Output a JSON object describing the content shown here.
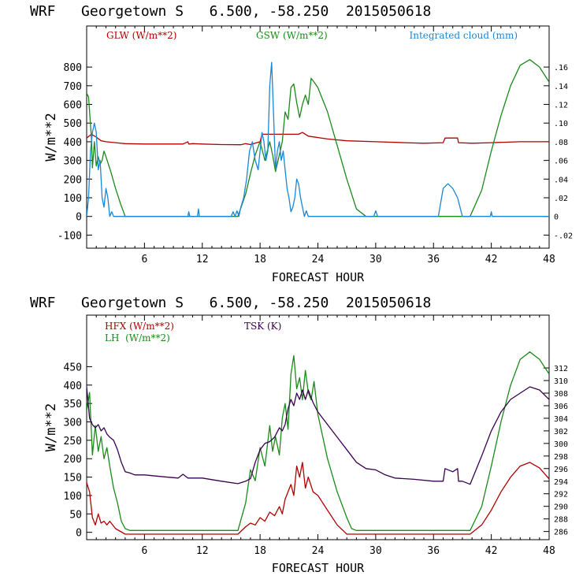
{
  "colors": {
    "red": "#b00000",
    "green": "#1a8a1a",
    "blue": "#1a86d8",
    "purple": "#3a0050",
    "axis": "#000000"
  },
  "chart_data": [
    {
      "type": "line",
      "title": "WRF   Georgetown S   6.500, -58.250  2015050618",
      "xlabel": "FORECAST HOUR",
      "ylabel": "W/m**2",
      "xlim": [
        0,
        48
      ],
      "ylim": [
        -170,
        1020
      ],
      "xticks": [
        "6",
        "12",
        "18",
        "24",
        "30",
        "36",
        "42",
        "48"
      ],
      "xtick_values": [
        6,
        12,
        18,
        24,
        30,
        36,
        42,
        48
      ],
      "yticks": [
        "-100",
        "0",
        "100",
        "200",
        "300",
        "400",
        "500",
        "600",
        "700",
        "800"
      ],
      "ytick_values": [
        -100,
        0,
        100,
        200,
        300,
        400,
        500,
        600,
        700,
        800
      ],
      "y2lim": [
        -0.034,
        0.204
      ],
      "y2ticks": [
        "-.02",
        "0",
        ".02",
        ".04",
        ".06",
        ".08",
        ".10",
        ".12",
        ".14",
        ".16"
      ],
      "y2tick_values": [
        -0.02,
        0,
        0.02,
        0.04,
        0.06,
        0.08,
        0.1,
        0.12,
        0.14,
        0.16
      ],
      "legend": [
        "GLW (W/m**2)",
        "GSW (W/m**2)",
        "Integrated cloud (mm)"
      ],
      "series": [
        {
          "name": "GLW (W/m**2)",
          "color": "red",
          "axis": "left",
          "x": [
            0,
            0.5,
            1,
            1.5,
            2,
            3,
            4,
            6,
            8,
            10,
            10.5,
            10.6,
            11,
            12,
            14,
            16,
            16.5,
            17,
            18,
            18.2,
            19,
            20,
            21,
            22,
            22.4,
            23,
            25,
            27,
            30,
            33,
            35,
            37,
            37.2,
            38.5,
            38.6,
            40,
            42,
            45,
            48
          ],
          "y": [
            420,
            440,
            425,
            405,
            400,
            395,
            390,
            388,
            388,
            388,
            400,
            388,
            390,
            388,
            385,
            384,
            390,
            385,
            400,
            440,
            440,
            440,
            440,
            440,
            450,
            430,
            415,
            405,
            400,
            395,
            392,
            395,
            420,
            420,
            395,
            392,
            395,
            400,
            400
          ]
        },
        {
          "name": "GSW (W/m**2)",
          "color": "green",
          "axis": "left",
          "x": [
            0,
            0.2,
            0.5,
            0.6,
            0.8,
            1,
            1.2,
            1.4,
            1.6,
            1.8,
            2,
            2.5,
            3,
            3.5,
            4,
            4.5,
            15.7,
            16.5,
            17,
            17.5,
            18,
            18.5,
            19,
            19.3,
            19.6,
            20,
            20.3,
            20.6,
            20.9,
            21.2,
            21.5,
            21.8,
            22.1,
            22.4,
            22.7,
            23,
            23.3,
            23.6,
            24,
            25,
            26,
            27,
            28,
            29,
            39.8,
            41,
            42,
            43,
            44,
            45,
            46,
            47,
            48
          ],
          "y": [
            660,
            640,
            420,
            260,
            400,
            270,
            320,
            280,
            300,
            350,
            320,
            240,
            150,
            70,
            0,
            0,
            0,
            120,
            230,
            330,
            400,
            300,
            400,
            330,
            240,
            330,
            400,
            560,
            520,
            690,
            710,
            610,
            530,
            600,
            650,
            600,
            740,
            720,
            690,
            560,
            380,
            200,
            40,
            0,
            0,
            140,
            350,
            540,
            700,
            810,
            840,
            800,
            720
          ]
        },
        {
          "name": "Integrated cloud (mm)",
          "color": "blue",
          "axis": "right",
          "x": [
            0,
            0.2,
            0.4,
            0.6,
            0.8,
            1.0,
            1.2,
            1.4,
            1.6,
            1.8,
            2.0,
            2.2,
            2.4,
            2.6,
            2.8,
            10.5,
            10.6,
            10.7,
            11.5,
            11.6,
            11.7,
            15.0,
            15.2,
            15.4,
            15.6,
            15.8,
            16.0,
            16.3,
            16.6,
            16.9,
            17.2,
            17.5,
            17.8,
            18.0,
            18.2,
            18.4,
            18.6,
            18.8,
            19.0,
            19.2,
            19.4,
            19.6,
            19.8,
            20.0,
            20.2,
            20.4,
            20.6,
            20.8,
            21.0,
            21.2,
            21.4,
            21.6,
            21.8,
            22.0,
            22.2,
            22.4,
            22.6,
            22.8,
            23.0,
            23.2,
            29.8,
            30.0,
            30.2,
            36.5,
            37.0,
            37.5,
            38.0,
            38.5,
            39.0,
            41.9,
            42.0,
            42.1,
            48
          ],
          "y": [
            0,
            0.02,
            0.07,
            0.09,
            0.1,
            0.09,
            0.05,
            0.06,
            0.02,
            0.01,
            0.03,
            0.02,
            0,
            0.005,
            0,
            0,
            0.005,
            0,
            0,
            0.008,
            0,
            0,
            0.005,
            0,
            0.006,
            0,
            0.01,
            0.02,
            0.04,
            0.07,
            0.08,
            0.06,
            0.05,
            0.07,
            0.09,
            0.08,
            0.06,
            0.07,
            0.14,
            0.165,
            0.11,
            0.05,
            0.07,
            0.08,
            0.06,
            0.07,
            0.05,
            0.03,
            0.02,
            0.005,
            0.01,
            0.02,
            0.04,
            0.035,
            0.02,
            0.01,
            0,
            0.006,
            0,
            0,
            0,
            0.006,
            0,
            0,
            0.03,
            0.035,
            0.03,
            0.02,
            0,
            0,
            0.005,
            0,
            0
          ]
        }
      ]
    },
    {
      "type": "line",
      "title": "WRF   Georgetown S   6.500, -58.250  2015050618",
      "xlabel": "FORECAST HOUR",
      "ylabel": "W/m**2",
      "xlim": [
        0,
        48
      ],
      "ylim": [
        -20,
        590
      ],
      "xticks": [
        "6",
        "12",
        "18",
        "24",
        "30",
        "36",
        "42",
        "48"
      ],
      "xtick_values": [
        6,
        12,
        18,
        24,
        30,
        36,
        42,
        48
      ],
      "yticks": [
        "0",
        "50",
        "100",
        "150",
        "200",
        "250",
        "300",
        "350",
        "400",
        "450"
      ],
      "ytick_values": [
        0,
        50,
        100,
        150,
        200,
        250,
        300,
        350,
        400,
        450
      ],
      "y2lim": [
        284.7,
        320.4
      ],
      "y2ticks": [
        "286",
        "288",
        "290",
        "292",
        "294",
        "296",
        "298",
        "300",
        "302",
        "304",
        "306",
        "308",
        "310",
        "312"
      ],
      "y2tick_values": [
        286,
        288,
        290,
        292,
        294,
        296,
        298,
        300,
        302,
        304,
        306,
        308,
        310,
        312
      ],
      "legend": [
        "HFX (W/m**2)",
        "LH  (W/m**2)",
        "TSK (K)"
      ],
      "series": [
        {
          "name": "HFX (W/m**2)",
          "color": "red",
          "axis": "left",
          "x": [
            0,
            0.3,
            0.6,
            0.9,
            1.2,
            1.5,
            1.8,
            2.1,
            2.4,
            3,
            4,
            5,
            6,
            8,
            10,
            12,
            14,
            15.7,
            16.5,
            17,
            17.5,
            18,
            18.5,
            19,
            19.5,
            20,
            20.3,
            20.6,
            20.9,
            21.2,
            21.5,
            21.8,
            22.1,
            22.4,
            22.7,
            23,
            23.5,
            24,
            25,
            26,
            27,
            28,
            29,
            30,
            35,
            39.8,
            41,
            42,
            43,
            44,
            45,
            46,
            47,
            48
          ],
          "y": [
            135,
            110,
            40,
            20,
            50,
            25,
            30,
            20,
            30,
            10,
            -5,
            -5,
            -5,
            -5,
            -5,
            -5,
            -5,
            -5,
            15,
            25,
            20,
            40,
            30,
            55,
            45,
            70,
            50,
            90,
            110,
            130,
            100,
            180,
            150,
            190,
            120,
            150,
            110,
            100,
            60,
            20,
            -5,
            -5,
            -5,
            -5,
            -5,
            -5,
            20,
            60,
            110,
            150,
            180,
            190,
            175,
            145
          ]
        },
        {
          "name": "LH  (W/m**2)",
          "color": "green",
          "axis": "left",
          "x": [
            0,
            0.3,
            0.6,
            0.9,
            1.2,
            1.5,
            1.8,
            2.1,
            2.4,
            2.8,
            3.2,
            3.6,
            4,
            4.5,
            6,
            10,
            15.7,
            16.5,
            17,
            17.5,
            18,
            18.5,
            19,
            19.3,
            19.6,
            20,
            20.3,
            20.6,
            20.9,
            21.2,
            21.5,
            21.8,
            22.1,
            22.4,
            22.7,
            23,
            23.3,
            23.6,
            24,
            25,
            26,
            27,
            27.5,
            28,
            29,
            35,
            39.8,
            41,
            42,
            43,
            44,
            45,
            46,
            47,
            48
          ],
          "y": [
            330,
            380,
            210,
            290,
            220,
            260,
            200,
            230,
            180,
            120,
            80,
            30,
            10,
            5,
            5,
            5,
            5,
            80,
            170,
            140,
            230,
            180,
            290,
            220,
            260,
            210,
            310,
            350,
            280,
            430,
            480,
            390,
            420,
            360,
            440,
            380,
            360,
            410,
            320,
            200,
            110,
            40,
            10,
            5,
            5,
            5,
            5,
            70,
            180,
            300,
            400,
            470,
            490,
            470,
            430
          ]
        },
        {
          "name": "TSK (K)",
          "color": "purple",
          "axis": "right",
          "x": [
            0,
            0.3,
            0.6,
            0.9,
            1.2,
            1.5,
            1.8,
            2.1,
            2.4,
            2.8,
            3.2,
            3.6,
            4,
            4.5,
            5,
            6,
            8,
            9.5,
            10,
            10.5,
            12,
            14,
            15.7,
            16.5,
            17,
            17.5,
            18,
            18.5,
            19,
            19.5,
            20,
            20.3,
            20.6,
            20.9,
            21.2,
            21.5,
            21.8,
            22.1,
            22.4,
            22.7,
            23,
            23.5,
            24,
            25,
            26,
            27,
            28,
            29,
            30,
            31,
            32,
            34,
            36,
            37,
            37.2,
            38,
            38.5,
            38.6,
            39,
            39.8,
            41,
            42,
            43,
            44,
            45,
            46,
            47,
            48
          ],
          "y": [
            309,
            304,
            303,
            302.5,
            303,
            302,
            302.5,
            301.5,
            301,
            300.5,
            299,
            297,
            295.5,
            295.3,
            295,
            295,
            294.7,
            294.5,
            295.1,
            294.5,
            294.5,
            294,
            293.6,
            294,
            294.4,
            297,
            299,
            300,
            300.3,
            301,
            302.5,
            302,
            303,
            305.5,
            307,
            306,
            308,
            307,
            308.5,
            307,
            308.5,
            306.5,
            305,
            303,
            301,
            299,
            297,
            296,
            295.8,
            295,
            294.5,
            294.3,
            294,
            294,
            296,
            295.5,
            296,
            294,
            294,
            293.5,
            298,
            302,
            305,
            307,
            308,
            309,
            308.5,
            307
          ]
        }
      ]
    }
  ]
}
